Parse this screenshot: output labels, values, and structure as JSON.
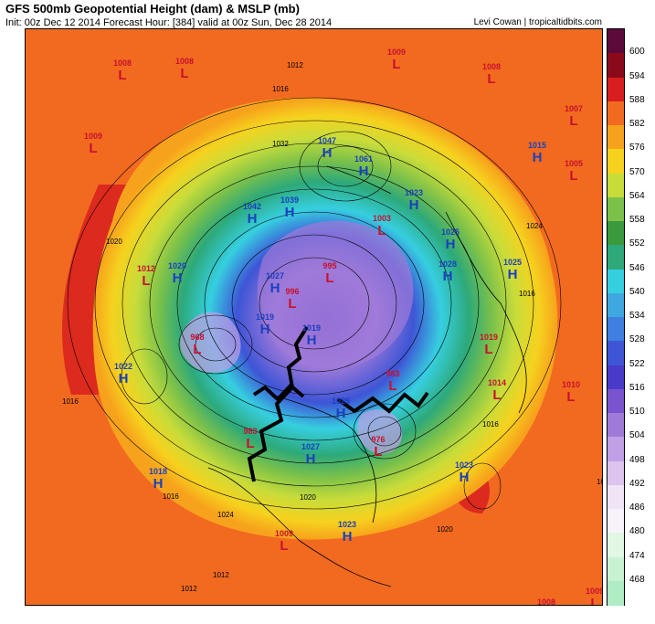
{
  "header": {
    "title": "GFS 500mb Geopotential Height (dam) & MSLP (mb)",
    "subtitle": "Init: 00z Dec 12 2014    Forecast Hour: [384]    valid at 00z Sun, Dec 28 2014",
    "credit": "Levi Cowan | tropicaltidbits.com"
  },
  "colorbar": {
    "levels": [
      "600",
      "594",
      "588",
      "582",
      "576",
      "570",
      "564",
      "558",
      "552",
      "546",
      "540",
      "534",
      "528",
      "522",
      "516",
      "510",
      "504",
      "498",
      "492",
      "486",
      "480",
      "474",
      "468"
    ],
    "colors": [
      "#5c0a3a",
      "#8b0a1a",
      "#d81e1e",
      "#f26a1f",
      "#f7a21c",
      "#f6d21e",
      "#c8dc3a",
      "#7cc14a",
      "#3a9a3c",
      "#2da97a",
      "#36cfe0",
      "#3fa8e0",
      "#3e7fe0",
      "#3e55d6",
      "#4a3ac9",
      "#7a54cf",
      "#a07ad9",
      "#c2a0e6",
      "#ddc4ef",
      "#f0e4f7",
      "#f8f2fb",
      "#e2f8e4",
      "#c8f2d2"
    ]
  },
  "centers": [
    {
      "type": "L",
      "value": "1008"
    },
    {
      "type": "L",
      "value": "1008"
    },
    {
      "type": "L",
      "value": "1009"
    },
    {
      "type": "L",
      "value": "1008"
    },
    {
      "type": "L",
      "value": "1007"
    },
    {
      "type": "L",
      "value": "1009"
    },
    {
      "type": "H",
      "value": "1015"
    },
    {
      "type": "L",
      "value": "1005"
    },
    {
      "type": "H",
      "value": "1047"
    },
    {
      "type": "H",
      "value": "1061"
    },
    {
      "type": "H",
      "value": "1023"
    },
    {
      "type": "H",
      "value": "1042"
    },
    {
      "type": "H",
      "value": "1039"
    },
    {
      "type": "L",
      "value": "1003"
    },
    {
      "type": "H",
      "value": "1025"
    },
    {
      "type": "H",
      "value": "1028"
    },
    {
      "type": "H",
      "value": "1025"
    },
    {
      "type": "L",
      "value": "1012"
    },
    {
      "type": "H",
      "value": "1020"
    },
    {
      "type": "H",
      "value": "1027"
    },
    {
      "type": "L",
      "value": "995"
    },
    {
      "type": "L",
      "value": "996"
    },
    {
      "type": "H",
      "value": "1019"
    },
    {
      "type": "L",
      "value": "968"
    },
    {
      "type": "H",
      "value": "1019"
    },
    {
      "type": "H",
      "value": "1022"
    },
    {
      "type": "L",
      "value": "983"
    },
    {
      "type": "L",
      "value": "1019"
    },
    {
      "type": "L",
      "value": "1014"
    },
    {
      "type": "L",
      "value": "1010"
    },
    {
      "type": "H",
      "value": "1025"
    },
    {
      "type": "L",
      "value": "983"
    },
    {
      "type": "H",
      "value": "1027"
    },
    {
      "type": "L",
      "value": "976"
    },
    {
      "type": "H",
      "value": "1023"
    },
    {
      "type": "H",
      "value": "1018"
    },
    {
      "type": "L",
      "value": "1009"
    },
    {
      "type": "H",
      "value": "1023"
    },
    {
      "type": "L",
      "value": "1009"
    },
    {
      "type": "L",
      "value": "1008"
    },
    {
      "type": "L",
      "value": "1010"
    },
    {
      "type": "L",
      "value": "1007"
    }
  ],
  "isobar_labels": [
    "1012",
    "1016",
    "1032",
    "1020",
    "1024",
    "1016",
    "1012",
    "1016",
    "1012",
    "1024",
    "1020",
    "1016",
    "1012",
    "1020",
    "1016",
    "1012",
    "1012"
  ]
}
